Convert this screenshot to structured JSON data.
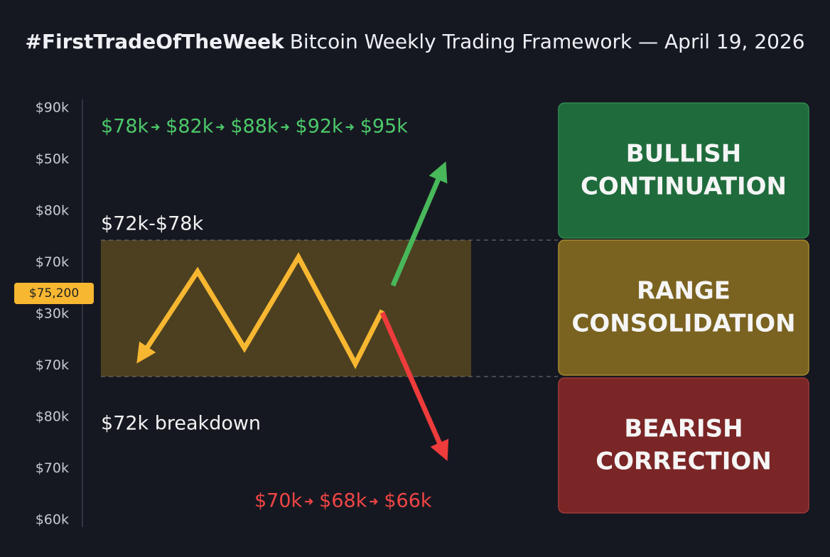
{
  "title": {
    "hashtag": "#FirstTradeOfTheWeek",
    "text": "Bitcoin Weekly Trading Framework — April 19, 2026"
  },
  "axis_labels": [
    "$90k",
    "$50k",
    "$80k",
    "$70k",
    "$30k",
    "$70k",
    "$80k",
    "$70k",
    "$60k"
  ],
  "current_price": "$75,200",
  "range_label": "$72k-$78k",
  "breakdown_label": "$72k breakdown",
  "bullish_targets": [
    "$78k",
    "$82k",
    "$88k",
    "$92k",
    "$95k"
  ],
  "bearish_targets": [
    "$70k",
    "$68k",
    "$66k"
  ],
  "scenarios": [
    {
      "line1": "BULLISH",
      "line2": "CONTINUATION"
    },
    {
      "line1": "RANGE",
      "line2": "CONSOLIDATION"
    },
    {
      "line1": "BEARISH",
      "line2": "CORRECTION"
    }
  ]
}
